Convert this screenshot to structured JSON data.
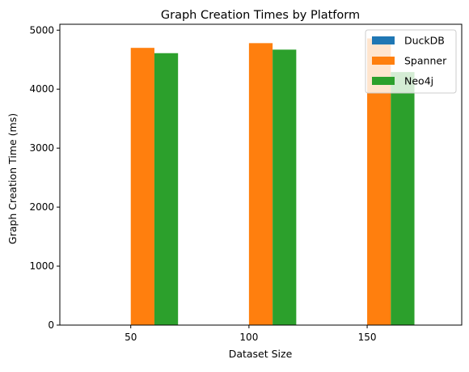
{
  "chart_data": {
    "type": "bar",
    "title": "Graph Creation Times by Platform",
    "xlabel": "Dataset Size",
    "ylabel": "Graph Creation Time (ms)",
    "categories": [
      "50",
      "100",
      "150"
    ],
    "ylim": [
      0,
      5100
    ],
    "yticks": [
      0,
      1000,
      2000,
      3000,
      4000,
      5000
    ],
    "grid": false,
    "legend_position": "top-right",
    "series": [
      {
        "name": "DuckDB",
        "color": "#1f77b4",
        "values": [
          0,
          0,
          0
        ]
      },
      {
        "name": "Spanner",
        "color": "#ff7f0e",
        "values": [
          4700,
          4780,
          4860
        ]
      },
      {
        "name": "Neo4j",
        "color": "#2ca02c",
        "values": [
          4610,
          4670,
          4290
        ]
      }
    ]
  }
}
